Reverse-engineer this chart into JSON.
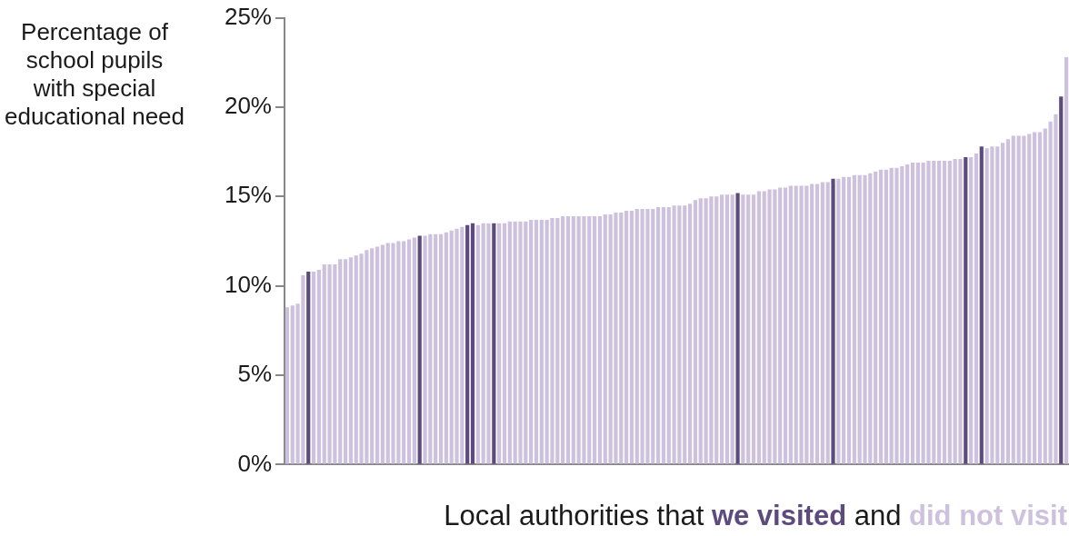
{
  "chart_data": {
    "type": "bar",
    "ylabel": "Percentage of school pupils with special educational need",
    "xlabel": "Local authorities that",
    "annotations": [
      "and"
    ],
    "categories": [
      null,
      null,
      null,
      null,
      null,
      null,
      null,
      null,
      null,
      null,
      null,
      null,
      null,
      null,
      null,
      null,
      null,
      null,
      null,
      null,
      null,
      null,
      null,
      null,
      null,
      null,
      null,
      null,
      null,
      null,
      null,
      null,
      null,
      null,
      null,
      null,
      null,
      null,
      null,
      null,
      null,
      null,
      null,
      null,
      null,
      null,
      null,
      null,
      null,
      null,
      null,
      null,
      null,
      null,
      null,
      null,
      null,
      null,
      null,
      null,
      null,
      null,
      null,
      null,
      null,
      null,
      null,
      null,
      null,
      null,
      null,
      null,
      null,
      null,
      null,
      null,
      null,
      null,
      null,
      null,
      null,
      null,
      null,
      null,
      null,
      null,
      null,
      null,
      null,
      null,
      null,
      null,
      null,
      null,
      null,
      null,
      null,
      null,
      null,
      null,
      null,
      null,
      null,
      null,
      null,
      null,
      null,
      null,
      null,
      null,
      null,
      null,
      null,
      null,
      null,
      null,
      null,
      null,
      null,
      null,
      null,
      null,
      null,
      null,
      null,
      null,
      null,
      null,
      null,
      null,
      null,
      null,
      null,
      null,
      null,
      null,
      null,
      null,
      null,
      null,
      null,
      null,
      null,
      null,
      null,
      null,
      null,
      null
    ],
    "series": [
      {
        "name": "we visited",
        "color": "#5e4b7e",
        "values": [
          null,
          null,
          null,
          null,
          10.8,
          null,
          null,
          null,
          null,
          null,
          null,
          null,
          null,
          null,
          null,
          null,
          null,
          null,
          null,
          null,
          null,
          null,
          null,
          null,
          null,
          12.8,
          null,
          null,
          null,
          null,
          null,
          null,
          null,
          null,
          13.4,
          13.5,
          null,
          null,
          null,
          13.5,
          null,
          null,
          null,
          null,
          null,
          null,
          null,
          null,
          null,
          null,
          null,
          null,
          null,
          null,
          null,
          null,
          null,
          null,
          null,
          null,
          null,
          null,
          null,
          null,
          null,
          null,
          null,
          null,
          null,
          null,
          null,
          null,
          null,
          null,
          null,
          null,
          null,
          null,
          null,
          null,
          null,
          null,
          null,
          null,
          null,
          15.2,
          null,
          null,
          null,
          null,
          null,
          null,
          null,
          null,
          null,
          null,
          null,
          null,
          null,
          null,
          null,
          null,
          null,
          16.0,
          null,
          null,
          null,
          null,
          null,
          null,
          null,
          null,
          null,
          null,
          null,
          null,
          null,
          null,
          null,
          null,
          null,
          null,
          null,
          null,
          null,
          null,
          null,
          null,
          17.2,
          null,
          null,
          17.8,
          null,
          null,
          null,
          null,
          null,
          null,
          null,
          null,
          null,
          null,
          null,
          null,
          null,
          null,
          20.6,
          null
        ]
      },
      {
        "name": "did not visit",
        "color": "#cdc1de",
        "values": [
          8.8,
          8.9,
          9.0,
          10.6,
          null,
          10.8,
          10.9,
          11.2,
          11.2,
          11.2,
          11.5,
          11.5,
          11.6,
          11.7,
          11.8,
          12.0,
          12.1,
          12.2,
          12.3,
          12.4,
          12.4,
          12.5,
          12.5,
          12.6,
          12.7,
          null,
          12.8,
          12.9,
          12.9,
          12.9,
          13.0,
          13.1,
          13.2,
          13.3,
          null,
          null,
          13.4,
          13.5,
          13.5,
          null,
          13.5,
          13.5,
          13.6,
          13.6,
          13.6,
          13.6,
          13.7,
          13.7,
          13.7,
          13.7,
          13.8,
          13.8,
          13.9,
          13.9,
          13.9,
          13.9,
          13.9,
          13.9,
          13.9,
          13.9,
          14.0,
          14.0,
          14.1,
          14.1,
          14.2,
          14.2,
          14.3,
          14.3,
          14.3,
          14.3,
          14.4,
          14.4,
          14.4,
          14.5,
          14.5,
          14.5,
          14.6,
          14.8,
          14.9,
          14.9,
          15.0,
          15.0,
          15.1,
          15.1,
          15.1,
          null,
          15.1,
          15.1,
          15.1,
          15.3,
          15.3,
          15.4,
          15.4,
          15.5,
          15.5,
          15.6,
          15.6,
          15.6,
          15.6,
          15.7,
          15.7,
          15.8,
          15.8,
          null,
          16.0,
          16.1,
          16.1,
          16.2,
          16.2,
          16.2,
          16.3,
          16.4,
          16.5,
          16.5,
          16.6,
          16.6,
          16.7,
          16.8,
          16.9,
          16.9,
          16.9,
          17.0,
          17.0,
          17.0,
          17.0,
          17.0,
          17.1,
          17.1,
          null,
          17.2,
          17.4,
          null,
          17.7,
          17.8,
          17.8,
          18.0,
          18.2,
          18.4,
          18.4,
          18.4,
          18.5,
          18.6,
          18.6,
          18.8,
          19.2,
          19.6,
          null,
          22.8
        ]
      }
    ],
    "ylim": [
      0,
      25
    ],
    "yticks": [
      {
        "value": 0,
        "label": "0%"
      },
      {
        "value": 5,
        "label": "5%"
      },
      {
        "value": 10,
        "label": "10%"
      },
      {
        "value": 15,
        "label": "15%"
      },
      {
        "value": 20,
        "label": "20%"
      },
      {
        "value": 25,
        "label": "25%"
      }
    ],
    "grid": false,
    "legend": "bottom"
  }
}
